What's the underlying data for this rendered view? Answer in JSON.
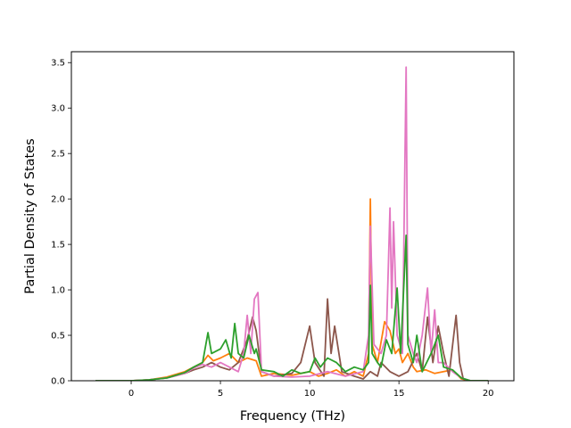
{
  "chart_data": {
    "type": "line",
    "title": "",
    "xlabel": "Frequency (THz)",
    "ylabel": "Partial Density of States",
    "xlim": [
      -3.35,
      21.44
    ],
    "ylim": [
      0,
      3.62
    ],
    "xticks": [
      0,
      5,
      10,
      15,
      20
    ],
    "xtick_labels": [
      "0",
      "5",
      "10",
      "15",
      "20"
    ],
    "yticks": [
      0.0,
      0.5,
      1.0,
      1.5,
      2.0,
      2.5,
      3.0,
      3.5
    ],
    "ytick_labels": [
      "0.0",
      "0.5",
      "1.0",
      "1.5",
      "2.0",
      "2.5",
      "3.0",
      "3.5"
    ],
    "grid": false,
    "legend": "none",
    "series": [
      {
        "color": "#ff7f0e",
        "points": [
          [
            -2.0,
            0
          ],
          [
            -1.0,
            0
          ],
          [
            0,
            0
          ],
          [
            1.0,
            0.01
          ],
          [
            2.0,
            0.04
          ],
          [
            3.0,
            0.1
          ],
          [
            3.5,
            0.15
          ],
          [
            4.0,
            0.2
          ],
          [
            4.3,
            0.28
          ],
          [
            4.6,
            0.22
          ],
          [
            5.0,
            0.25
          ],
          [
            5.5,
            0.3
          ],
          [
            6.0,
            0.2
          ],
          [
            6.5,
            0.25
          ],
          [
            7.0,
            0.22
          ],
          [
            7.3,
            0.05
          ],
          [
            8.0,
            0.08
          ],
          [
            9.0,
            0.06
          ],
          [
            10.0,
            0.1
          ],
          [
            10.5,
            0.05
          ],
          [
            11.0,
            0.08
          ],
          [
            11.5,
            0.12
          ],
          [
            12.0,
            0.05
          ],
          [
            12.5,
            0.1
          ],
          [
            13.0,
            0.05
          ],
          [
            13.3,
            0.3
          ],
          [
            13.4,
            2.0
          ],
          [
            13.5,
            0.4
          ],
          [
            13.8,
            0.2
          ],
          [
            14.2,
            0.65
          ],
          [
            14.5,
            0.55
          ],
          [
            14.8,
            0.3
          ],
          [
            15.0,
            0.35
          ],
          [
            15.2,
            0.2
          ],
          [
            15.5,
            0.3
          ],
          [
            15.8,
            0.15
          ],
          [
            16.0,
            0.1
          ],
          [
            16.5,
            0.12
          ],
          [
            17.0,
            0.08
          ],
          [
            17.5,
            0.1
          ],
          [
            18.0,
            0.12
          ],
          [
            18.5,
            0.02
          ],
          [
            19.0,
            0
          ],
          [
            20.0,
            0
          ]
        ]
      },
      {
        "color": "#8c564b",
        "points": [
          [
            -2.0,
            0
          ],
          [
            -1.0,
            0
          ],
          [
            0,
            0
          ],
          [
            1.0,
            0.01
          ],
          [
            2.0,
            0.03
          ],
          [
            3.0,
            0.08
          ],
          [
            3.5,
            0.12
          ],
          [
            4.0,
            0.15
          ],
          [
            4.5,
            0.2
          ],
          [
            5.0,
            0.15
          ],
          [
            5.5,
            0.12
          ],
          [
            6.0,
            0.2
          ],
          [
            6.5,
            0.45
          ],
          [
            6.8,
            0.7
          ],
          [
            7.0,
            0.55
          ],
          [
            7.3,
            0.1
          ],
          [
            8.0,
            0.05
          ],
          [
            9.0,
            0.08
          ],
          [
            9.5,
            0.2
          ],
          [
            10.0,
            0.6
          ],
          [
            10.3,
            0.2
          ],
          [
            10.8,
            0.05
          ],
          [
            11.0,
            0.9
          ],
          [
            11.2,
            0.3
          ],
          [
            11.4,
            0.6
          ],
          [
            11.8,
            0.1
          ],
          [
            12.5,
            0.05
          ],
          [
            13.0,
            0.02
          ],
          [
            13.4,
            0.1
          ],
          [
            13.8,
            0.05
          ],
          [
            14.0,
            0.2
          ],
          [
            14.5,
            0.1
          ],
          [
            15.0,
            0.05
          ],
          [
            15.5,
            0.1
          ],
          [
            16.0,
            0.3
          ],
          [
            16.3,
            0.1
          ],
          [
            16.6,
            0.7
          ],
          [
            16.9,
            0.2
          ],
          [
            17.2,
            0.6
          ],
          [
            17.5,
            0.3
          ],
          [
            17.8,
            0.05
          ],
          [
            18.2,
            0.72
          ],
          [
            18.4,
            0.2
          ],
          [
            18.6,
            0.02
          ],
          [
            19.0,
            0
          ],
          [
            20.0,
            0
          ]
        ]
      },
      {
        "color": "#e377c2",
        "points": [
          [
            -2.0,
            0
          ],
          [
            -1.0,
            0
          ],
          [
            0,
            0
          ],
          [
            1.0,
            0.01
          ],
          [
            2.0,
            0.03
          ],
          [
            3.0,
            0.08
          ],
          [
            3.5,
            0.14
          ],
          [
            4.0,
            0.18
          ],
          [
            4.5,
            0.15
          ],
          [
            5.0,
            0.2
          ],
          [
            5.5,
            0.15
          ],
          [
            6.0,
            0.1
          ],
          [
            6.3,
            0.3
          ],
          [
            6.5,
            0.72
          ],
          [
            6.7,
            0.3
          ],
          [
            6.9,
            0.9
          ],
          [
            7.1,
            0.97
          ],
          [
            7.3,
            0.1
          ],
          [
            8.0,
            0.05
          ],
          [
            9.0,
            0.04
          ],
          [
            10.0,
            0.05
          ],
          [
            11.0,
            0.1
          ],
          [
            12.0,
            0.05
          ],
          [
            13.0,
            0.1
          ],
          [
            13.3,
            0.5
          ],
          [
            13.4,
            1.7
          ],
          [
            13.6,
            0.4
          ],
          [
            14.0,
            0.3
          ],
          [
            14.3,
            0.5
          ],
          [
            14.5,
            1.9
          ],
          [
            14.6,
            0.8
          ],
          [
            14.7,
            1.75
          ],
          [
            14.9,
            0.5
          ],
          [
            15.2,
            0.3
          ],
          [
            15.4,
            3.45
          ],
          [
            15.5,
            0.5
          ],
          [
            15.8,
            0.3
          ],
          [
            16.0,
            0.2
          ],
          [
            16.3,
            0.5
          ],
          [
            16.6,
            1.02
          ],
          [
            16.8,
            0.3
          ],
          [
            17.0,
            0.78
          ],
          [
            17.2,
            0.2
          ],
          [
            17.5,
            0.2
          ],
          [
            18.0,
            0.1
          ],
          [
            18.5,
            0.03
          ],
          [
            19.0,
            0
          ],
          [
            20.0,
            0
          ]
        ]
      },
      {
        "color": "#2ca02c",
        "points": [
          [
            -2.0,
            0
          ],
          [
            -1.0,
            0
          ],
          [
            0,
            0
          ],
          [
            1.0,
            0.01
          ],
          [
            2.0,
            0.03
          ],
          [
            3.0,
            0.09
          ],
          [
            3.5,
            0.15
          ],
          [
            4.0,
            0.2
          ],
          [
            4.3,
            0.53
          ],
          [
            4.5,
            0.3
          ],
          [
            5.0,
            0.35
          ],
          [
            5.3,
            0.45
          ],
          [
            5.6,
            0.25
          ],
          [
            5.8,
            0.63
          ],
          [
            6.0,
            0.3
          ],
          [
            6.3,
            0.25
          ],
          [
            6.6,
            0.5
          ],
          [
            6.9,
            0.3
          ],
          [
            7.0,
            0.35
          ],
          [
            7.3,
            0.12
          ],
          [
            8.0,
            0.1
          ],
          [
            8.5,
            0.05
          ],
          [
            9.0,
            0.12
          ],
          [
            9.5,
            0.08
          ],
          [
            10.0,
            0.1
          ],
          [
            10.3,
            0.25
          ],
          [
            10.6,
            0.15
          ],
          [
            11.0,
            0.25
          ],
          [
            11.5,
            0.2
          ],
          [
            12.0,
            0.1
          ],
          [
            12.5,
            0.15
          ],
          [
            13.0,
            0.12
          ],
          [
            13.3,
            0.2
          ],
          [
            13.4,
            1.05
          ],
          [
            13.5,
            0.3
          ],
          [
            13.8,
            0.2
          ],
          [
            14.0,
            0.15
          ],
          [
            14.3,
            0.45
          ],
          [
            14.6,
            0.3
          ],
          [
            14.9,
            1.02
          ],
          [
            15.1,
            0.3
          ],
          [
            15.4,
            1.6
          ],
          [
            15.5,
            0.4
          ],
          [
            15.8,
            0.2
          ],
          [
            16.0,
            0.5
          ],
          [
            16.3,
            0.1
          ],
          [
            16.8,
            0.3
          ],
          [
            17.2,
            0.5
          ],
          [
            17.5,
            0.15
          ],
          [
            18.0,
            0.12
          ],
          [
            18.5,
            0.03
          ],
          [
            19.0,
            0
          ],
          [
            20.0,
            0
          ]
        ]
      }
    ]
  }
}
